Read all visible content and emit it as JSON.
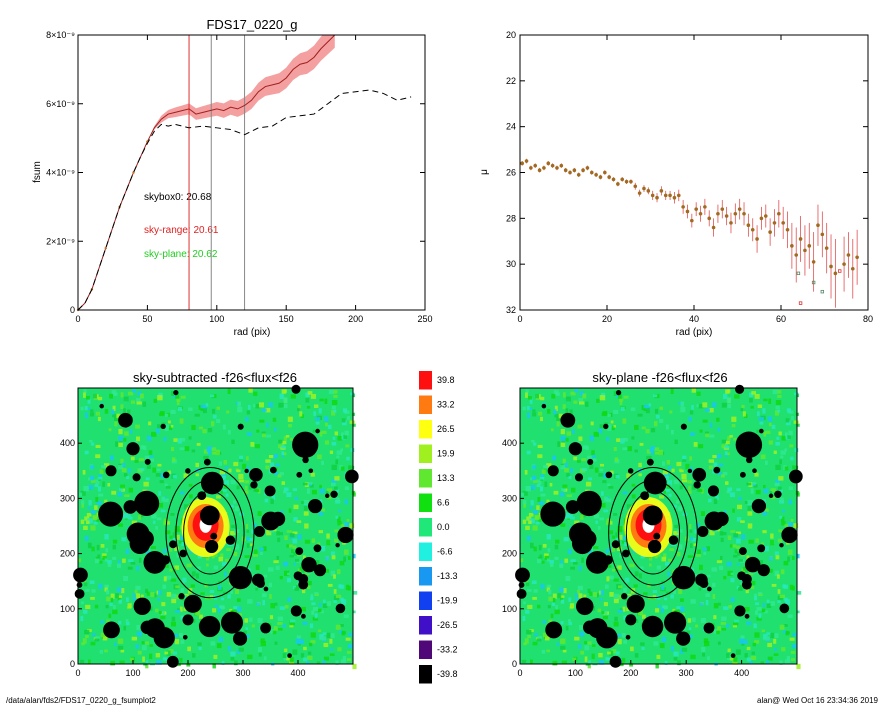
{
  "chart_data": [
    {
      "type": "line",
      "title": "FDS17_0220_g",
      "xlabel": "rad (pix)",
      "ylabel": "fsum",
      "xlim": [
        0,
        250
      ],
      "ylim": [
        0,
        8e-09
      ],
      "x_ticks": [
        "0",
        "50",
        "100",
        "150",
        "200",
        "250"
      ],
      "y_ticks": [
        "0",
        "2×10⁻⁹",
        "4×10⁻⁹",
        "6×10⁻⁹",
        "8×10⁻⁹"
      ],
      "vlines": [
        {
          "x": 80,
          "color": "#e03030"
        },
        {
          "x": 96,
          "color": "#888888"
        },
        {
          "x": 120,
          "color": "#888888"
        }
      ],
      "annotations": [
        {
          "text": "skybox0: 20.68",
          "color": "#000000"
        },
        {
          "text": "sky-range: 20.61",
          "color": "#e02020"
        },
        {
          "text": "sky-plane: 20.62",
          "color": "#22cc22"
        }
      ],
      "series": [
        {
          "style": "solid",
          "color": "#a02020",
          "band_color": "#f4a0a0",
          "x": [
            0,
            5,
            10,
            15,
            20,
            25,
            30,
            35,
            40,
            45,
            50,
            55,
            60,
            65,
            70,
            75,
            80,
            85,
            90,
            95,
            100,
            105,
            110,
            115,
            120,
            125,
            130,
            135,
            140,
            145,
            150,
            155,
            160,
            165,
            170,
            175,
            180,
            185
          ],
          "y": [
            0,
            2e-10,
            6e-10,
            1.2e-09,
            1.8e-09,
            2.4e-09,
            3e-09,
            3.5e-09,
            4e-09,
            4.45e-09,
            4.9e-09,
            5.3e-09,
            5.55e-09,
            5.7e-09,
            5.75e-09,
            5.8e-09,
            5.85e-09,
            5.7e-09,
            5.75e-09,
            5.8e-09,
            5.85e-09,
            5.8e-09,
            5.9e-09,
            5.85e-09,
            5.95e-09,
            6.1e-09,
            6.35e-09,
            6.5e-09,
            6.55e-09,
            6.6e-09,
            6.75e-09,
            7e-09,
            7.15e-09,
            7.2e-09,
            7.35e-09,
            7.6e-09,
            7.8e-09,
            8e-09
          ],
          "err": [
            0,
            0,
            0,
            0,
            0,
            0,
            0,
            0,
            0,
            0,
            0,
            5e-11,
            1e-10,
            1.2e-10,
            1.4e-10,
            1.5e-10,
            1.6e-10,
            1.7e-10,
            1.8e-10,
            1.9e-10,
            2e-10,
            2.1e-10,
            2.2e-10,
            2.3e-10,
            2.4e-10,
            2.5e-10,
            2.6e-10,
            2.7e-10,
            2.8e-10,
            2.9e-10,
            3e-10,
            3.1e-10,
            3.2e-10,
            3.3e-10,
            3.4e-10,
            3.5e-10,
            3.6e-10,
            3.7e-10
          ]
        },
        {
          "style": "dashed",
          "color": "#000000",
          "x": [
            0,
            5,
            10,
            15,
            20,
            25,
            30,
            35,
            40,
            45,
            50,
            55,
            60,
            65,
            70,
            75,
            80,
            90,
            100,
            110,
            120,
            130,
            140,
            150,
            160,
            170,
            180,
            190,
            200,
            210,
            220,
            230,
            240
          ],
          "y": [
            0,
            2e-10,
            6e-10,
            1.2e-09,
            1.8e-09,
            2.4e-09,
            3e-09,
            3.5e-09,
            4e-09,
            4.45e-09,
            4.85e-09,
            5.2e-09,
            5.4e-09,
            5.35e-09,
            5.4e-09,
            5.35e-09,
            5.3e-09,
            5.35e-09,
            5.3e-09,
            5.25e-09,
            5.1e-09,
            5.3e-09,
            5.35e-09,
            5.6e-09,
            5.65e-09,
            5.7e-09,
            6e-09,
            6.3e-09,
            6.35e-09,
            6.4e-09,
            6.3e-09,
            6.1e-09,
            6.2e-09
          ]
        }
      ]
    },
    {
      "type": "scatter",
      "xlabel": "rad (pix)",
      "ylabel": "μ",
      "xlim": [
        0,
        80
      ],
      "ylim": [
        32,
        20
      ],
      "x_ticks": [
        "0",
        "20",
        "40",
        "60",
        "80"
      ],
      "y_ticks": [
        "20",
        "22",
        "24",
        "26",
        "28",
        "30",
        "32"
      ],
      "points": {
        "x": [
          0.5,
          1.5,
          2.5,
          3.5,
          4.5,
          5.5,
          6.5,
          7.5,
          8.5,
          9.5,
          10.5,
          11.5,
          12.5,
          13.5,
          14.5,
          15.5,
          16.5,
          17.5,
          18.5,
          19.5,
          20.5,
          21.5,
          22.5,
          23.5,
          24.5,
          25.5,
          26.5,
          27.5,
          28.5,
          29.5,
          30.5,
          31.5,
          32.5,
          33.5,
          34.5,
          35.5,
          36.5,
          37.5,
          38.5,
          39.5,
          40.5,
          41.5,
          42.5,
          43.5,
          44.5,
          45.5,
          46.5,
          47.5,
          48.5,
          49.5,
          50.5,
          51.5,
          52.5,
          53.5,
          54.5,
          55.5,
          56.5,
          57.5,
          58.5,
          59.5,
          60.5,
          61.5,
          62.5,
          63.5,
          64.5,
          65.5,
          66.5,
          67.5,
          68.5,
          69.5,
          70.5,
          71.5,
          72.5,
          74.5,
          75.5,
          76.5,
          77.5
        ],
        "y": [
          25.6,
          25.5,
          25.8,
          25.7,
          25.9,
          25.8,
          25.6,
          25.7,
          25.8,
          25.7,
          25.9,
          26.0,
          25.9,
          26.1,
          25.9,
          25.8,
          26.0,
          26.1,
          26.2,
          26.0,
          26.2,
          26.3,
          26.5,
          26.3,
          26.4,
          26.4,
          26.6,
          26.9,
          26.7,
          26.8,
          27.0,
          27.1,
          26.8,
          27.0,
          27.0,
          27.1,
          27.0,
          27.5,
          27.7,
          28.1,
          27.6,
          27.8,
          27.5,
          28.0,
          28.4,
          27.8,
          27.6,
          27.9,
          28.2,
          27.8,
          27.6,
          27.8,
          28.3,
          28.5,
          28.9,
          28.0,
          27.9,
          28.6,
          28.2,
          27.8,
          28.2,
          28.5,
          29.2,
          29.6,
          28.9,
          29.4,
          29.2,
          29.9,
          28.3,
          28.7,
          29.3,
          30.1,
          30.4,
          30.0,
          29.6,
          30.2,
          29.7
        ],
        "err": [
          0.1,
          0.1,
          0.1,
          0.1,
          0.1,
          0.1,
          0.1,
          0.1,
          0.1,
          0.1,
          0.1,
          0.1,
          0.1,
          0.1,
          0.1,
          0.1,
          0.1,
          0.1,
          0.1,
          0.1,
          0.1,
          0.1,
          0.1,
          0.1,
          0.1,
          0.1,
          0.15,
          0.15,
          0.15,
          0.15,
          0.2,
          0.2,
          0.2,
          0.2,
          0.2,
          0.25,
          0.25,
          0.3,
          0.3,
          0.3,
          0.3,
          0.35,
          0.35,
          0.35,
          0.4,
          0.4,
          0.4,
          0.4,
          0.45,
          0.45,
          0.45,
          0.5,
          0.5,
          0.5,
          0.6,
          0.5,
          0.5,
          0.6,
          0.6,
          0.6,
          0.7,
          0.8,
          1.0,
          1.2,
          1.0,
          1.1,
          1.0,
          1.3,
          0.9,
          1.0,
          1.1,
          1.4,
          1.5,
          1.2,
          1.0,
          1.3,
          1.2
        ]
      },
      "outliers": [
        {
          "x": 64.5,
          "y": 31.7,
          "color": "#e03030"
        },
        {
          "x": 69.5,
          "y": 31.2,
          "color": "#558866"
        },
        {
          "x": 67.5,
          "y": 30.8,
          "color": "#558866"
        },
        {
          "x": 64.0,
          "y": 30.4,
          "color": "#558866"
        },
        {
          "x": 73.5,
          "y": 30.3,
          "color": "#e03030"
        }
      ]
    },
    {
      "type": "heatmap",
      "title": "sky-subtracted -f26<flux<f26",
      "xlim": [
        0,
        500
      ],
      "ylim": [
        0,
        500
      ],
      "x_ticks": [
        "0",
        "100",
        "200",
        "300",
        "400"
      ],
      "y_ticks": [
        "0",
        "100",
        "200",
        "300",
        "400"
      ],
      "ellipses": [
        {
          "cx": 240,
          "cy": 238,
          "rx": 80,
          "ry": 118
        },
        {
          "cx": 240,
          "cy": 238,
          "rx": 62,
          "ry": 95
        },
        {
          "cx": 240,
          "cy": 238,
          "rx": 48,
          "ry": 75
        }
      ]
    },
    {
      "type": "heatmap",
      "title": "sky-plane -f26<flux<f26",
      "xlim": [
        0,
        500
      ],
      "ylim": [
        0,
        500
      ],
      "x_ticks": [
        "0",
        "100",
        "200",
        "300",
        "400"
      ],
      "y_ticks": [
        "0",
        "100",
        "200",
        "300",
        "400"
      ],
      "ellipses": [
        {
          "cx": 240,
          "cy": 238,
          "rx": 80,
          "ry": 118
        },
        {
          "cx": 240,
          "cy": 238,
          "rx": 62,
          "ry": 95
        },
        {
          "cx": 240,
          "cy": 238,
          "rx": 48,
          "ry": 75
        }
      ]
    }
  ],
  "colorbar": {
    "levels": [
      {
        "label": "39.8",
        "color": "#ff1010"
      },
      {
        "label": "33.2",
        "color": "#ff7a10"
      },
      {
        "label": "26.5",
        "color": "#ffff10"
      },
      {
        "label": "19.9",
        "color": "#a0f020"
      },
      {
        "label": "13.3",
        "color": "#60e830"
      },
      {
        "label": "6.6",
        "color": "#10e010"
      },
      {
        "label": "0.0",
        "color": "#20e878"
      },
      {
        "label": "-6.6",
        "color": "#20f0e0"
      },
      {
        "label": "-13.3",
        "color": "#1898f0"
      },
      {
        "label": "-19.9",
        "color": "#1040f0"
      },
      {
        "label": "-26.5",
        "color": "#4010c8"
      },
      {
        "label": "-33.2",
        "color": "#500878"
      },
      {
        "label": "-39.8",
        "color": "#000000"
      }
    ]
  },
  "footer": {
    "left": "/data/alan/fds2/FDS17_0220_g_fsumplot2",
    "right": "alan@  Wed Oct 16 23:34:36 2019"
  }
}
